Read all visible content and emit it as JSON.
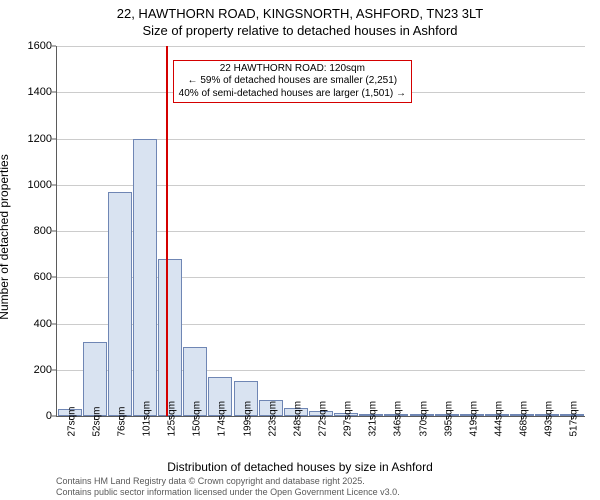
{
  "title": {
    "line1": "22, HAWTHORN ROAD, KINGSNORTH, ASHFORD, TN23 3LT",
    "line2": "Size of property relative to detached houses in Ashford"
  },
  "chart": {
    "type": "histogram",
    "y_axis": {
      "label": "Number of detached properties",
      "min": 0,
      "max": 1600,
      "ticks": [
        0,
        200,
        400,
        600,
        800,
        1000,
        1200,
        1400,
        1600
      ],
      "label_fontsize": 12,
      "tick_fontsize": 11
    },
    "x_axis": {
      "label": "Distribution of detached houses by size in Ashford",
      "tick_labels": [
        "27sqm",
        "52sqm",
        "76sqm",
        "101sqm",
        "125sqm",
        "150sqm",
        "174sqm",
        "199sqm",
        "223sqm",
        "248sqm",
        "272sqm",
        "297sqm",
        "321sqm",
        "346sqm",
        "370sqm",
        "395sqm",
        "419sqm",
        "444sqm",
        "468sqm",
        "493sqm",
        "517sqm"
      ],
      "label_fontsize": 12,
      "tick_fontsize": 10
    },
    "bars": {
      "values": [
        30,
        320,
        970,
        1200,
        680,
        300,
        170,
        150,
        70,
        35,
        20,
        15,
        10,
        8,
        6,
        5,
        4,
        3,
        2,
        2,
        2
      ],
      "fill_color": "#d9e3f1",
      "border_color": "#6f86b4",
      "bar_width_fraction": 0.96
    },
    "reference_line": {
      "x_index": 3.85,
      "color": "#d40000",
      "width": 2
    },
    "annotation": {
      "lines": [
        "22 HAWTHORN ROAD: 120sqm",
        "← 59% of detached houses are smaller (2,251)",
        "40% of semi-detached houses are larger (1,501) →"
      ],
      "border_color": "#d40000",
      "background_color": "#ffffff",
      "fontsize": 10,
      "position_x_index": 4.1,
      "position_y_value": 1540
    },
    "grid": {
      "horizontal": true,
      "color": "#cccccc"
    },
    "background_color": "#ffffff",
    "axis_color": "#5b5b5b"
  },
  "footer": {
    "line1": "Contains HM Land Registry data © Crown copyright and database right 2025.",
    "line2": "Contains public sector information licensed under the Open Government Licence v3.0."
  }
}
